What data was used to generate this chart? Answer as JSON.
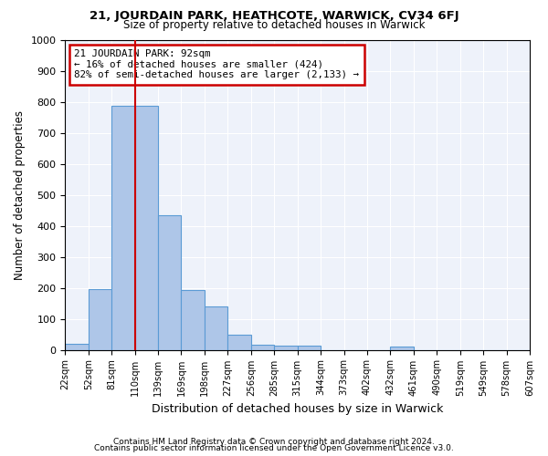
{
  "title1": "21, JOURDAIN PARK, HEATHCOTE, WARWICK, CV34 6FJ",
  "title2": "Size of property relative to detached houses in Warwick",
  "xlabel": "Distribution of detached houses by size in Warwick",
  "ylabel": "Number of detached properties",
  "bin_edges": [
    "22sqm",
    "52sqm",
    "81sqm",
    "110sqm",
    "139sqm",
    "169sqm",
    "198sqm",
    "227sqm",
    "256sqm",
    "285sqm",
    "315sqm",
    "344sqm",
    "373sqm",
    "402sqm",
    "432sqm",
    "461sqm",
    "490sqm",
    "519sqm",
    "549sqm",
    "578sqm",
    "607sqm"
  ],
  "bar_heights": [
    20,
    195,
    787,
    787,
    435,
    192,
    140,
    48,
    15,
    12,
    12,
    0,
    0,
    0,
    10,
    0,
    0,
    0,
    0,
    0
  ],
  "bar_color": "#aec6e8",
  "bar_edge_color": "#5b9bd5",
  "vline_color": "#cc0000",
  "vline_pos": 2.5,
  "annotation_text": "21 JOURDAIN PARK: 92sqm\n← 16% of detached houses are smaller (424)\n82% of semi-detached houses are larger (2,133) →",
  "annotation_box_edgecolor": "#cc0000",
  "ylim": [
    0,
    1000
  ],
  "yticks": [
    0,
    100,
    200,
    300,
    400,
    500,
    600,
    700,
    800,
    900,
    1000
  ],
  "footer1": "Contains HM Land Registry data © Crown copyright and database right 2024.",
  "footer2": "Contains public sector information licensed under the Open Government Licence v3.0.",
  "bg_color": "#eef2fa"
}
